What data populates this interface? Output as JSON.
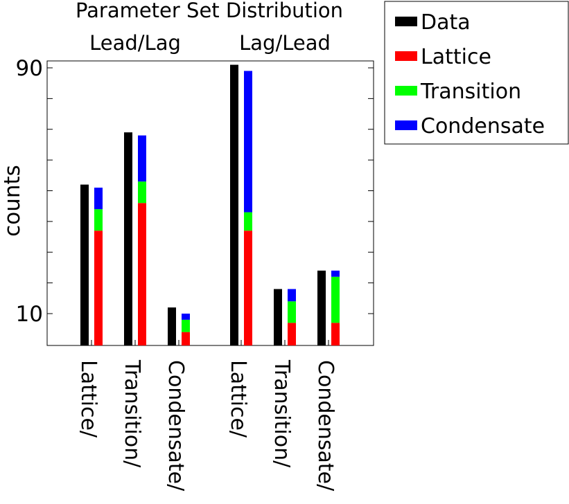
{
  "chart_data": {
    "type": "bar",
    "title": "Parameter Set Distribution",
    "group_labels": [
      "Lead/Lag",
      "Lag/Lead"
    ],
    "ylabel": "counts",
    "ylim": [
      0,
      90
    ],
    "y_tick_labels": [
      "10",
      "90"
    ],
    "categories": [
      "Lattice/",
      "Transition/",
      "Condensate/",
      "Lattice/",
      "Transition/",
      "Condensate/"
    ],
    "series": [
      {
        "name": "Data",
        "color": "#000000",
        "values": [
          52,
          69,
          12,
          91,
          18,
          24
        ]
      },
      {
        "name": "Lattice",
        "color": "#ff0000",
        "values": [
          37,
          46,
          4,
          37,
          7,
          7
        ]
      },
      {
        "name": "Transition",
        "color": "#00ff00",
        "values": [
          7,
          7,
          4,
          6,
          7,
          15
        ]
      },
      {
        "name": "Condensate",
        "color": "#0000ff",
        "values": [
          7,
          15,
          2,
          46,
          4,
          2
        ]
      }
    ],
    "stacked_series": [
      "Lattice",
      "Transition",
      "Condensate"
    ],
    "legend_position": "top-right",
    "grid": false
  }
}
